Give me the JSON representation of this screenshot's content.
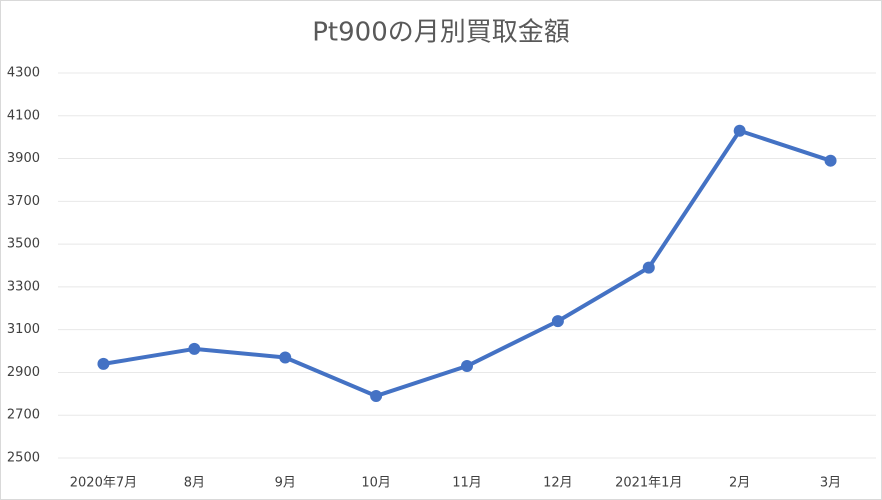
{
  "chart_data": {
    "type": "line",
    "title": "Pt900の月別買取金額",
    "categories": [
      "2020年7月",
      "8月",
      "9月",
      "10月",
      "11月",
      "12月",
      "2021年1月",
      "2月",
      "3月"
    ],
    "values": [
      2940,
      3010,
      2970,
      2790,
      2930,
      3140,
      3390,
      4030,
      3890
    ],
    "color": "#4472c4",
    "ylim": [
      2500,
      4300
    ],
    "yticks": [
      2500,
      2700,
      2900,
      3100,
      3300,
      3500,
      3700,
      3900,
      4100,
      4300
    ],
    "grid": true
  }
}
